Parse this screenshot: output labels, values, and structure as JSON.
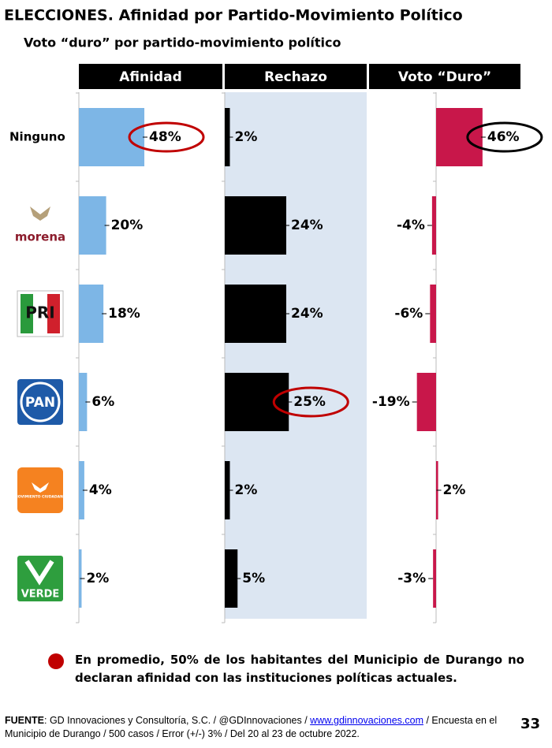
{
  "chart_data": {
    "type": "bar",
    "orientation": "horizontal",
    "title": "ELECCIONES. Afinidad por Partido-Movimiento Político",
    "subtitle": "Voto “duro” por partido-movimiento político",
    "categories": [
      "Ninguno",
      "morena",
      "PRI",
      "PAN",
      "MOVIMIENTO CIUDADANO",
      "VERDE"
    ],
    "series": [
      {
        "name": "Afinidad",
        "color": "#7db6e6",
        "values": [
          48,
          20,
          18,
          6,
          4,
          2
        ],
        "value_labels": [
          "48%",
          "20%",
          "18%",
          "6%",
          "4%",
          "2%"
        ],
        "circled": [
          0
        ],
        "circle_color": "#c00000"
      },
      {
        "name": "Rechazo",
        "color": "#000000",
        "background": "#dce6f2",
        "values": [
          2,
          24,
          24,
          25,
          2,
          5
        ],
        "value_labels": [
          "2%",
          "24%",
          "24%",
          "25%",
          "2%",
          "5%"
        ],
        "circled": [
          3
        ],
        "circle_color": "#c00000"
      },
      {
        "name": "Voto “Duro”",
        "color": "#c8174a",
        "values": [
          46,
          -4,
          -6,
          -19,
          2,
          -3
        ],
        "value_labels": [
          "46%",
          "-4%",
          "-6%",
          "-19%",
          "2%",
          "-3%"
        ],
        "circled": [
          0
        ],
        "circle_color": "#000000"
      }
    ],
    "note": "En promedio, 50% de los habitantes del Municipio de Durango no declaran afinidad con las instituciones políticas actuales.",
    "note_bullet_color": "#c00000"
  },
  "footer": {
    "source_label": "FUENTE",
    "source_text": ": GD Innovaciones y Consultoría, S.C. / @GDInnovaciones / ",
    "source_link": "www.gdinnovaciones.com",
    "source_text_2": " / Encuesta en el Municipio de Durango / 500 casos / Error (+/-) 3% / Del 20 al 23 de octubre 2022.",
    "page_number": "33"
  }
}
